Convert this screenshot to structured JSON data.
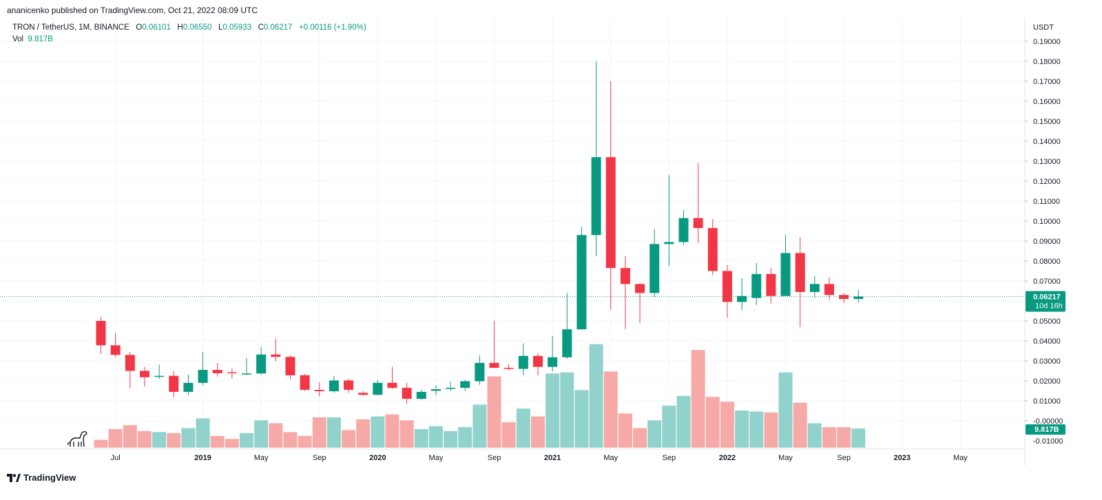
{
  "published_line": "ananicenko published on TradingView.com, Oct 21, 2022 08:09 UTC",
  "legend": {
    "symbol": "TRON / TetherUS, 1M, BINANCE",
    "o_label": "O",
    "o_value": "0.06101",
    "h_label": "H",
    "h_value": "0.06550",
    "l_label": "L",
    "l_value": "0.05933",
    "c_label": "C",
    "c_value": "0.06217",
    "change": "+0.00116 (+1.90%)",
    "vol_label": "Vol",
    "vol_value": "9.817B"
  },
  "footer": {
    "brand": "TradingView"
  },
  "colors": {
    "up": "#089981",
    "down": "#f23645",
    "vol_up": "#92d2cc",
    "vol_down": "#f7a9a7",
    "grid": "#f0f3fa",
    "axis_text": "#131722"
  },
  "chart_data": {
    "type": "candlestick",
    "title": "TRON / TetherUS, 1M, BINANCE",
    "y_axis_unit": "USDT",
    "ylim": [
      -0.012,
      0.195
    ],
    "y_ticks": [
      0.19,
      0.18,
      0.17,
      0.16,
      0.15,
      0.14,
      0.13,
      0.12,
      0.11,
      0.1,
      0.09,
      0.08,
      0.07,
      0.06,
      0.05,
      0.04,
      0.03,
      0.02,
      0.01,
      0.0
    ],
    "y_tick_labels": [
      "0.19000",
      "0.18000",
      "0.17000",
      "0.16000",
      "0.15000",
      "0.14000",
      "0.13000",
      "0.12000",
      "0.11000",
      "0.10000",
      "0.09000",
      "0.08000",
      "0.07000",
      "0.06000",
      "0.05000",
      "0.04000",
      "0.03000",
      "0.02000",
      "0.01000",
      "-0.00000"
    ],
    "bottom_tick_label": "-0.01000",
    "x_axis_months": 60,
    "x_ticks": [
      {
        "index": 1,
        "label": "Jul",
        "bold": false
      },
      {
        "index": 7,
        "label": "2019",
        "bold": true
      },
      {
        "index": 11,
        "label": "May",
        "bold": false
      },
      {
        "index": 15,
        "label": "Sep",
        "bold": false
      },
      {
        "index": 19,
        "label": "2020",
        "bold": true
      },
      {
        "index": 23,
        "label": "May",
        "bold": false
      },
      {
        "index": 27,
        "label": "Sep",
        "bold": false
      },
      {
        "index": 31,
        "label": "2021",
        "bold": true
      },
      {
        "index": 35,
        "label": "May",
        "bold": false
      },
      {
        "index": 39,
        "label": "Sep",
        "bold": false
      },
      {
        "index": 43,
        "label": "2022",
        "bold": true
      },
      {
        "index": 47,
        "label": "May",
        "bold": false
      },
      {
        "index": 51,
        "label": "Sep",
        "bold": false
      },
      {
        "index": 55,
        "label": "2023",
        "bold": true
      },
      {
        "index": 59,
        "label": "May",
        "bold": false
      }
    ],
    "candles": [
      {
        "t": "2018-06",
        "o": 0.05,
        "h": 0.052,
        "l": 0.0335,
        "c": 0.0378,
        "v": 4.0
      },
      {
        "t": "2018-07",
        "o": 0.0378,
        "h": 0.044,
        "l": 0.0318,
        "c": 0.033,
        "v": 9.5
      },
      {
        "t": "2018-08",
        "o": 0.033,
        "h": 0.0345,
        "l": 0.0163,
        "c": 0.025,
        "v": 11.5
      },
      {
        "t": "2018-09",
        "o": 0.025,
        "h": 0.027,
        "l": 0.0172,
        "c": 0.0218,
        "v": 8.5
      },
      {
        "t": "2018-10",
        "o": 0.0222,
        "h": 0.0282,
        "l": 0.021,
        "c": 0.0225,
        "v": 8.0
      },
      {
        "t": "2018-11",
        "o": 0.0225,
        "h": 0.0248,
        "l": 0.0118,
        "c": 0.0145,
        "v": 7.5
      },
      {
        "t": "2018-12",
        "o": 0.0145,
        "h": 0.0232,
        "l": 0.0128,
        "c": 0.019,
        "v": 10.0
      },
      {
        "t": "2019-01",
        "o": 0.019,
        "h": 0.0345,
        "l": 0.0178,
        "c": 0.0255,
        "v": 15.0
      },
      {
        "t": "2019-02",
        "o": 0.0255,
        "h": 0.029,
        "l": 0.0222,
        "c": 0.0238,
        "v": 6.0
      },
      {
        "t": "2019-03",
        "o": 0.0243,
        "h": 0.0262,
        "l": 0.0212,
        "c": 0.0238,
        "v": 4.5
      },
      {
        "t": "2019-04",
        "o": 0.0236,
        "h": 0.0315,
        "l": 0.023,
        "c": 0.0237,
        "v": 7.5
      },
      {
        "t": "2019-05",
        "o": 0.0237,
        "h": 0.0368,
        "l": 0.0232,
        "c": 0.0332,
        "v": 14.0
      },
      {
        "t": "2019-06",
        "o": 0.0332,
        "h": 0.041,
        "l": 0.0298,
        "c": 0.032,
        "v": 12.5
      },
      {
        "t": "2019-07",
        "o": 0.032,
        "h": 0.0328,
        "l": 0.0208,
        "c": 0.0228,
        "v": 8.0
      },
      {
        "t": "2019-08",
        "o": 0.0228,
        "h": 0.0235,
        "l": 0.015,
        "c": 0.0155,
        "v": 6.0
      },
      {
        "t": "2019-09",
        "o": 0.0155,
        "h": 0.0192,
        "l": 0.0122,
        "c": 0.0148,
        "v": 15.5
      },
      {
        "t": "2019-10",
        "o": 0.0148,
        "h": 0.0225,
        "l": 0.014,
        "c": 0.0202,
        "v": 15.5
      },
      {
        "t": "2019-11",
        "o": 0.0202,
        "h": 0.021,
        "l": 0.014,
        "c": 0.0155,
        "v": 9.0
      },
      {
        "t": "2019-12",
        "o": 0.014,
        "h": 0.015,
        "l": 0.0125,
        "c": 0.013,
        "v": 14.5
      },
      {
        "t": "2020-01",
        "o": 0.013,
        "h": 0.0205,
        "l": 0.0128,
        "c": 0.019,
        "v": 16.0
      },
      {
        "t": "2020-02",
        "o": 0.019,
        "h": 0.027,
        "l": 0.016,
        "c": 0.0165,
        "v": 17.0
      },
      {
        "t": "2020-03",
        "o": 0.0165,
        "h": 0.019,
        "l": 0.0085,
        "c": 0.011,
        "v": 14.0
      },
      {
        "t": "2020-04",
        "o": 0.011,
        "h": 0.0155,
        "l": 0.0105,
        "c": 0.0145,
        "v": 9.5
      },
      {
        "t": "2020-05",
        "o": 0.015,
        "h": 0.0178,
        "l": 0.0128,
        "c": 0.0158,
        "v": 11.0
      },
      {
        "t": "2020-06",
        "o": 0.016,
        "h": 0.0195,
        "l": 0.015,
        "c": 0.0165,
        "v": 8.5
      },
      {
        "t": "2020-07",
        "o": 0.0165,
        "h": 0.0205,
        "l": 0.015,
        "c": 0.0198,
        "v": 10.5
      },
      {
        "t": "2020-08",
        "o": 0.0198,
        "h": 0.0328,
        "l": 0.018,
        "c": 0.029,
        "v": 22.0
      },
      {
        "t": "2020-09",
        "o": 0.029,
        "h": 0.05,
        "l": 0.0265,
        "c": 0.0265,
        "v": 36.5
      },
      {
        "t": "2020-10",
        "o": 0.0265,
        "h": 0.0285,
        "l": 0.0252,
        "c": 0.026,
        "v": 13.0
      },
      {
        "t": "2020-11",
        "o": 0.026,
        "h": 0.0388,
        "l": 0.0228,
        "c": 0.0325,
        "v": 20.0
      },
      {
        "t": "2020-12",
        "o": 0.0325,
        "h": 0.0338,
        "l": 0.0228,
        "c": 0.027,
        "v": 16.0
      },
      {
        "t": "2021-01",
        "o": 0.027,
        "h": 0.0425,
        "l": 0.0248,
        "c": 0.0318,
        "v": 38.0
      },
      {
        "t": "2021-02",
        "o": 0.0318,
        "h": 0.064,
        "l": 0.031,
        "c": 0.0458,
        "v": 38.5
      },
      {
        "t": "2021-03",
        "o": 0.0458,
        "h": 0.097,
        "l": 0.0458,
        "c": 0.093,
        "v": 29.5
      },
      {
        "t": "2021-04",
        "o": 0.093,
        "h": 0.18,
        "l": 0.0825,
        "c": 0.132,
        "v": 53.0
      },
      {
        "t": "2021-05",
        "o": 0.132,
        "h": 0.17,
        "l": 0.0555,
        "c": 0.0765,
        "v": 39.0
      },
      {
        "t": "2021-06",
        "o": 0.0765,
        "h": 0.0825,
        "l": 0.046,
        "c": 0.0685,
        "v": 17.5
      },
      {
        "t": "2021-07",
        "o": 0.0685,
        "h": 0.069,
        "l": 0.049,
        "c": 0.064,
        "v": 10.0
      },
      {
        "t": "2021-08",
        "o": 0.064,
        "h": 0.096,
        "l": 0.062,
        "c": 0.0885,
        "v": 14.0
      },
      {
        "t": "2021-09",
        "o": 0.0885,
        "h": 0.123,
        "l": 0.0775,
        "c": 0.0895,
        "v": 21.5
      },
      {
        "t": "2021-10",
        "o": 0.0895,
        "h": 0.1055,
        "l": 0.088,
        "c": 0.1015,
        "v": 26.5
      },
      {
        "t": "2021-11",
        "o": 0.1015,
        "h": 0.129,
        "l": 0.089,
        "c": 0.0965,
        "v": 50.0
      },
      {
        "t": "2021-12",
        "o": 0.0965,
        "h": 0.101,
        "l": 0.073,
        "c": 0.075,
        "v": 26.0
      },
      {
        "t": "2022-01",
        "o": 0.075,
        "h": 0.078,
        "l": 0.0515,
        "c": 0.0595,
        "v": 23.5
      },
      {
        "t": "2022-02",
        "o": 0.0595,
        "h": 0.0715,
        "l": 0.0555,
        "c": 0.0625,
        "v": 19.0
      },
      {
        "t": "2022-03",
        "o": 0.0615,
        "h": 0.079,
        "l": 0.058,
        "c": 0.0735,
        "v": 18.5
      },
      {
        "t": "2022-04",
        "o": 0.0735,
        "h": 0.0765,
        "l": 0.0585,
        "c": 0.0625,
        "v": 18.0
      },
      {
        "t": "2022-05",
        "o": 0.0625,
        "h": 0.093,
        "l": 0.0625,
        "c": 0.084,
        "v": 38.5
      },
      {
        "t": "2022-06",
        "o": 0.084,
        "h": 0.092,
        "l": 0.047,
        "c": 0.0645,
        "v": 23.0
      },
      {
        "t": "2022-07",
        "o": 0.0645,
        "h": 0.0725,
        "l": 0.0615,
        "c": 0.0685,
        "v": 12.5
      },
      {
        "t": "2022-08",
        "o": 0.0685,
        "h": 0.072,
        "l": 0.0605,
        "c": 0.063,
        "v": 10.5
      },
      {
        "t": "2022-09",
        "o": 0.063,
        "h": 0.064,
        "l": 0.059,
        "c": 0.061,
        "v": 10.5
      },
      {
        "t": "2022-10",
        "o": 0.061,
        "h": 0.0655,
        "l": 0.0593,
        "c": 0.0622,
        "v": 9.817
      }
    ],
    "volume_unit": "B",
    "volume_max": 55,
    "last_price_label": "0.06217",
    "countdown_label": "10d 16h",
    "last_volume_label": "9.817B"
  }
}
